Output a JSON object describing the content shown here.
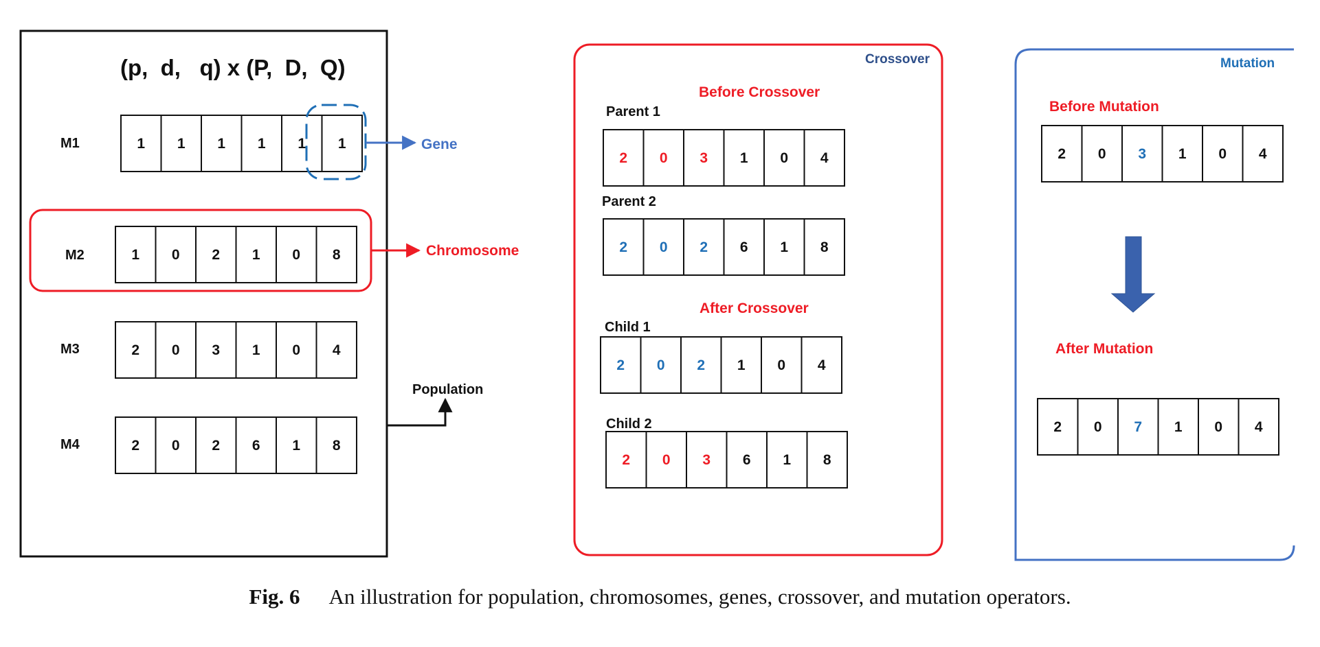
{
  "population_panel": {
    "formula": "(p,  d,   q) x (P,  D,  Q)",
    "models": [
      {
        "label": "M1",
        "genes": [
          "1",
          "1",
          "1",
          "1",
          "1",
          "1"
        ]
      },
      {
        "label": "M2",
        "genes": [
          "1",
          "0",
          "2",
          "1",
          "0",
          "8"
        ]
      },
      {
        "label": "M3",
        "genes": [
          "2",
          "0",
          "3",
          "1",
          "0",
          "4"
        ]
      },
      {
        "label": "M4",
        "genes": [
          "2",
          "0",
          "2",
          "6",
          "1",
          "8"
        ]
      }
    ],
    "gene_label": "Gene",
    "chromosome_label": "Chromosome",
    "population_label": "Population"
  },
  "crossover_panel": {
    "title": "Crossover",
    "before_label": "Before Crossover",
    "after_label": "After Crossover",
    "rows": [
      {
        "label": "Parent 1",
        "genes": [
          "2",
          "0",
          "3",
          "1",
          "0",
          "4"
        ],
        "colors": [
          "red",
          "red",
          "red",
          "black",
          "black",
          "black"
        ]
      },
      {
        "label": "Parent 2",
        "genes": [
          "2",
          "0",
          "2",
          "6",
          "1",
          "8"
        ],
        "colors": [
          "blue",
          "blue",
          "blue",
          "black",
          "black",
          "black"
        ]
      },
      {
        "label": "Child 1",
        "genes": [
          "2",
          "0",
          "2",
          "1",
          "0",
          "4"
        ],
        "colors": [
          "blue",
          "blue",
          "blue",
          "black",
          "black",
          "black"
        ]
      },
      {
        "label": "Child 2",
        "genes": [
          "2",
          "0",
          "3",
          "6",
          "1",
          "8"
        ],
        "colors": [
          "red",
          "red",
          "red",
          "black",
          "black",
          "black"
        ]
      }
    ]
  },
  "mutation_panel": {
    "title": "Mutation",
    "before_label": "Before Mutation",
    "after_label": "After Mutation",
    "before_genes": [
      "2",
      "0",
      "3",
      "1",
      "0",
      "4"
    ],
    "before_colors": [
      "black",
      "black",
      "blue",
      "black",
      "black",
      "black"
    ],
    "after_genes": [
      "2",
      "0",
      "7",
      "1",
      "0",
      "4"
    ],
    "after_colors": [
      "black",
      "black",
      "blue",
      "black",
      "black",
      "black"
    ]
  },
  "caption": {
    "label": "Fig. 6",
    "text": "An illustration for population, chromosomes, genes, crossover, and mutation operators."
  },
  "colors": {
    "red": "#ee1c25",
    "blue": "#1f6fb6",
    "dark_blue": "#2e4f8a",
    "panel_blue": "#4472c4",
    "black": "#111111"
  }
}
